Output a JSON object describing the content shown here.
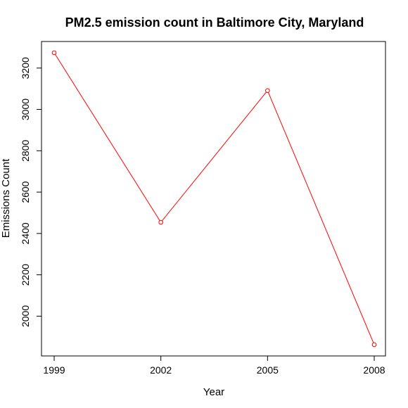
{
  "chart_data": {
    "type": "line",
    "title": "PM2.5 emission count in Baltimore City, Maryland",
    "xlabel": "Year",
    "ylabel": "Emissions Count",
    "x": [
      1999,
      2002,
      2005,
      2008
    ],
    "series": [
      {
        "values": [
          3274,
          2454,
          3091,
          1862
        ],
        "color": "#ff0000"
      }
    ],
    "x_ticks": [
      "1999",
      "2002",
      "2005",
      "2008"
    ],
    "y_ticks": [
      "2000",
      "2200",
      "2400",
      "2600",
      "2800",
      "3000",
      "3200"
    ],
    "xlim": [
      1999,
      2008
    ],
    "ylim": [
      1862,
      3274
    ],
    "grid": false,
    "marker": "open-circle"
  }
}
